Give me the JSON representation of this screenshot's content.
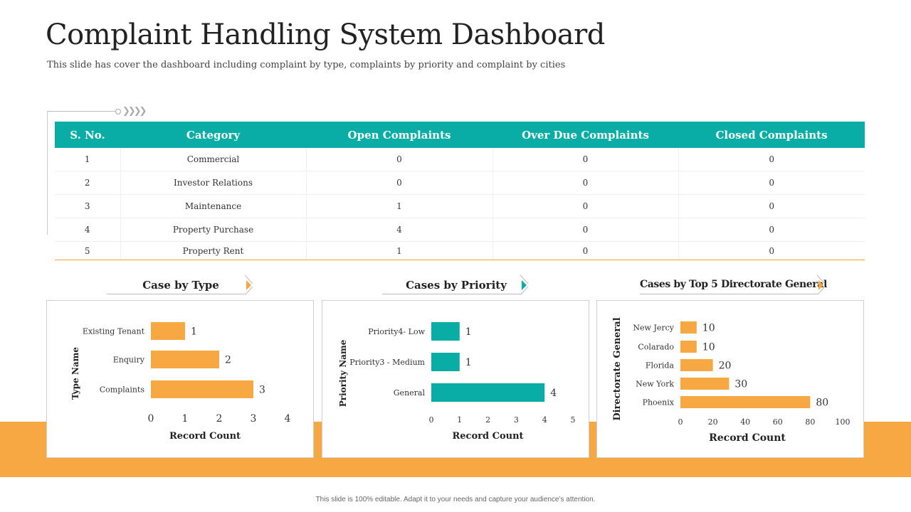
{
  "header": {
    "title": "Complaint Handling System Dashboard",
    "subtitle": "This slide has cover the dashboard including complaint by type, complaints by priority and complaint by cities"
  },
  "table": {
    "columns": [
      "S. No.",
      "Category",
      "Open Complaints",
      "Over Due Complaints",
      "Closed Complaints"
    ],
    "rows": [
      [
        "1",
        "Commercial",
        "0",
        "0",
        "0"
      ],
      [
        "2",
        "Investor  Relations",
        "0",
        "0",
        "0"
      ],
      [
        "3",
        "Maintenance",
        "1",
        "0",
        "0"
      ],
      [
        "4",
        "Property  Purchase",
        "4",
        "0",
        "0"
      ],
      [
        "5",
        "Property  Rent",
        "1",
        "0",
        "0"
      ]
    ]
  },
  "sections": {
    "type": "Case by Type",
    "priority": "Cases by Priority",
    "directorate": "Cases by Top 5 Directorate General"
  },
  "colors": {
    "teal": "#0aada6",
    "orange": "#f8a843"
  },
  "chart_data": [
    {
      "type": "bar",
      "orientation": "horizontal",
      "categories": [
        "Existing Tenant",
        "Enquiry",
        "Complaints"
      ],
      "values": [
        1,
        2,
        3
      ],
      "xlabel": "Record Count",
      "ylabel": "Type Name",
      "xlim": [
        0,
        4
      ],
      "xticks": [
        "0",
        "1",
        "2",
        "3",
        "4"
      ],
      "color": "#f8a843"
    },
    {
      "type": "bar",
      "orientation": "horizontal",
      "categories": [
        "Priority4- Low",
        "Priority3 - Medium",
        "General"
      ],
      "values": [
        1,
        1,
        4
      ],
      "xlabel": "Record Count",
      "ylabel": "Priority Name",
      "xlim": [
        0,
        5
      ],
      "xticks": [
        "0",
        "1",
        "2",
        "3",
        "4",
        "5"
      ],
      "color": "#0aada6"
    },
    {
      "type": "bar",
      "orientation": "horizontal",
      "categories": [
        "New Jercy",
        "Colarado",
        "Florida",
        "New York",
        "Phoenix"
      ],
      "values": [
        10,
        10,
        20,
        30,
        80
      ],
      "xlabel": "Record Count",
      "ylabel": "Directorate General",
      "xlim": [
        0,
        100
      ],
      "xticks": [
        "0",
        "20",
        "40",
        "60",
        "80",
        "100"
      ],
      "color": "#f8a843"
    }
  ],
  "footer": "This slide is 100% editable. Adapt it to your needs and capture your audience’s attention."
}
